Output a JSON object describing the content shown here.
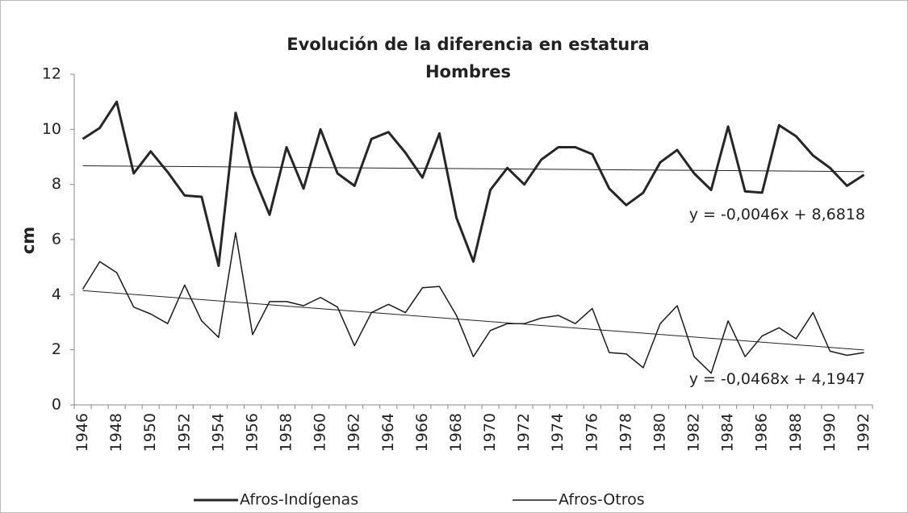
{
  "chart_data": {
    "type": "line",
    "title": "Evolución de la diferencia en estatura",
    "subtitle": "Hombres",
    "y_label": "cm",
    "categories": [
      "1946",
      null,
      "1948",
      null,
      "1950",
      null,
      "1952",
      null,
      "1954",
      null,
      "1956",
      null,
      "1958",
      null,
      "1960",
      null,
      "1962",
      null,
      "1964",
      null,
      "1966",
      null,
      "1968",
      null,
      "1970",
      null,
      "1972",
      null,
      "1974",
      null,
      "1976",
      null,
      "1978",
      null,
      "1980",
      null,
      "1982",
      null,
      "1984",
      null,
      "1986",
      null,
      "1988",
      null,
      "1990",
      null,
      "1992"
    ],
    "series": [
      {
        "name": "Afros-Indígenas",
        "color": "#262626",
        "width": 3,
        "values": [
          9.65,
          10.05,
          11.0,
          8.4,
          9.2,
          8.45,
          7.6,
          7.55,
          5.05,
          10.6,
          8.4,
          6.9,
          9.35,
          7.85,
          10.0,
          8.4,
          7.95,
          9.65,
          9.9,
          9.15,
          8.25,
          9.85,
          6.8,
          5.2,
          7.8,
          8.6,
          8.0,
          8.9,
          9.35,
          9.35,
          9.1,
          7.85,
          7.25,
          7.7,
          8.8,
          9.25,
          8.4,
          7.8,
          10.1,
          7.75,
          7.7,
          10.15,
          9.75,
          9.05,
          8.6,
          7.95,
          8.35
        ],
        "trend": {
          "slope": -0.0046,
          "intercept": 8.6818,
          "label": "y = -0,0046x + 8,6818"
        }
      },
      {
        "name": "Afros-Otros",
        "color": "#1a1a1a",
        "width": 1.5,
        "values": [
          4.2,
          5.2,
          4.8,
          3.55,
          3.3,
          2.95,
          4.35,
          3.05,
          2.45,
          6.25,
          2.55,
          3.75,
          3.75,
          3.6,
          3.9,
          3.55,
          2.15,
          3.35,
          3.65,
          3.35,
          4.25,
          4.3,
          3.25,
          1.75,
          2.7,
          2.95,
          2.95,
          3.15,
          3.25,
          2.95,
          3.5,
          1.9,
          1.85,
          1.35,
          2.95,
          3.6,
          1.75,
          1.15,
          3.05,
          1.75,
          2.5,
          2.8,
          2.4,
          3.35,
          1.95,
          1.8,
          1.9
        ],
        "trend": {
          "slope": -0.0468,
          "intercept": 4.1947,
          "label": "y = -0,0468x + 4,1947"
        }
      }
    ],
    "ylim": [
      0,
      12
    ],
    "yticks": [
      0,
      2,
      4,
      6,
      8,
      10,
      12
    ],
    "grid": false
  }
}
